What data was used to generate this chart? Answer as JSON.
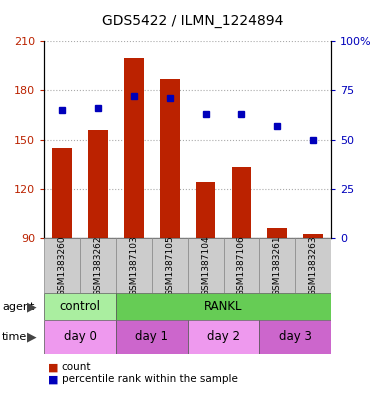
{
  "title": "GDS5422 / ILMN_1224894",
  "samples": [
    "GSM1383260",
    "GSM1383262",
    "GSM1387103",
    "GSM1387105",
    "GSM1387104",
    "GSM1387106",
    "GSM1383261",
    "GSM1383263"
  ],
  "bar_values": [
    145,
    156,
    200,
    187,
    124,
    133,
    96,
    92
  ],
  "bar_bottom": 90,
  "percentile_values": [
    65,
    66,
    72,
    71,
    63,
    63,
    57,
    50
  ],
  "left_ylim": [
    90,
    210
  ],
  "left_yticks": [
    90,
    120,
    150,
    180,
    210
  ],
  "right_ylim": [
    0,
    100
  ],
  "right_yticks": [
    0,
    25,
    50,
    75,
    100
  ],
  "bar_color": "#bb2200",
  "dot_color": "#0000bb",
  "agent_groups": [
    {
      "label": "control",
      "start": 0,
      "end": 2,
      "color": "#aaeea0"
    },
    {
      "label": "RANKL",
      "start": 2,
      "end": 8,
      "color": "#66cc55"
    }
  ],
  "time_groups": [
    {
      "label": "day 0",
      "start": 0,
      "end": 2,
      "color": "#ee99ee"
    },
    {
      "label": "day 1",
      "start": 2,
      "end": 4,
      "color": "#cc66cc"
    },
    {
      "label": "day 2",
      "start": 4,
      "end": 6,
      "color": "#ee99ee"
    },
    {
      "label": "day 3",
      "start": 6,
      "end": 8,
      "color": "#cc66cc"
    }
  ],
  "grid_color": "#aaaaaa",
  "bg_color": "#ffffff",
  "tick_label_area_color": "#cccccc",
  "legend_items": [
    {
      "label": "count",
      "color": "#bb2200"
    },
    {
      "label": "percentile rank within the sample",
      "color": "#0000bb"
    }
  ]
}
